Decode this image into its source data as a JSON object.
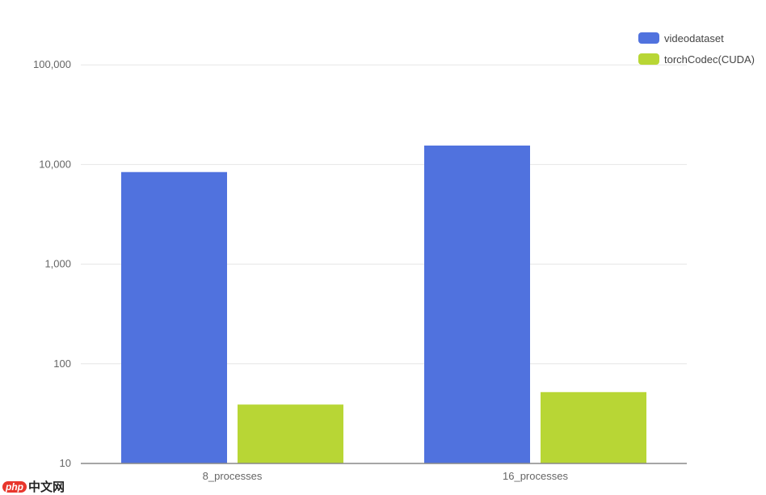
{
  "chart_data": {
    "type": "bar",
    "categories": [
      "8_processes",
      "16_processes"
    ],
    "series": [
      {
        "name": "videodataset",
        "values": [
          8400,
          15500
        ],
        "color": "#5072de"
      },
      {
        "name": "torchCodec(CUDA)",
        "values": [
          39,
          52
        ],
        "color": "#b8d635"
      }
    ],
    "yscale": "log",
    "ylim": [
      10,
      100000
    ],
    "yticks": [
      10,
      100,
      1000,
      10000,
      100000
    ],
    "ytick_labels": [
      "10",
      "100",
      "1,000",
      "10,000",
      "100,000"
    ],
    "grid": true,
    "legend": "top-right"
  },
  "watermark": {
    "badge": "php",
    "text": "中文网"
  }
}
